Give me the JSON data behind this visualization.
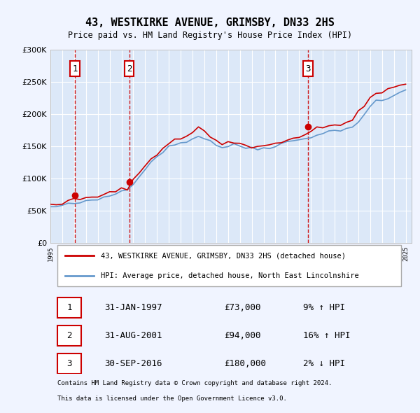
{
  "title": "43, WESTKIRKE AVENUE, GRIMSBY, DN33 2HS",
  "subtitle": "Price paid vs. HM Land Registry's House Price Index (HPI)",
  "legend_line1": "43, WESTKIRKE AVENUE, GRIMSBY, DN33 2HS (detached house)",
  "legend_line2": "HPI: Average price, detached house, North East Lincolnshire",
  "footer1": "Contains HM Land Registry data © Crown copyright and database right 2024.",
  "footer2": "This data is licensed under the Open Government Licence v3.0.",
  "transactions": [
    {
      "num": 1,
      "date": "31-JAN-1997",
      "price": 73000,
      "hpi_pct": "9%",
      "hpi_dir": "↑"
    },
    {
      "num": 2,
      "date": "31-AUG-2001",
      "price": 94000,
      "hpi_pct": "16%",
      "hpi_dir": "↑"
    },
    {
      "num": 3,
      "date": "30-SEP-2016",
      "price": 180000,
      "hpi_pct": "2%",
      "hpi_dir": "↓"
    }
  ],
  "transaction_years": [
    1997.08,
    2001.66,
    2016.75
  ],
  "transaction_prices": [
    73000,
    94000,
    180000
  ],
  "ylim": [
    0,
    300000
  ],
  "yticks": [
    0,
    50000,
    100000,
    150000,
    200000,
    250000,
    300000
  ],
  "background_color": "#f0f4ff",
  "plot_bg": "#dce8f8",
  "red_line_color": "#cc0000",
  "blue_line_color": "#6699cc",
  "vline_color": "#cc0000",
  "marker_color": "#cc0000",
  "box_edge_color": "#cc0000",
  "grid_color": "#ffffff"
}
